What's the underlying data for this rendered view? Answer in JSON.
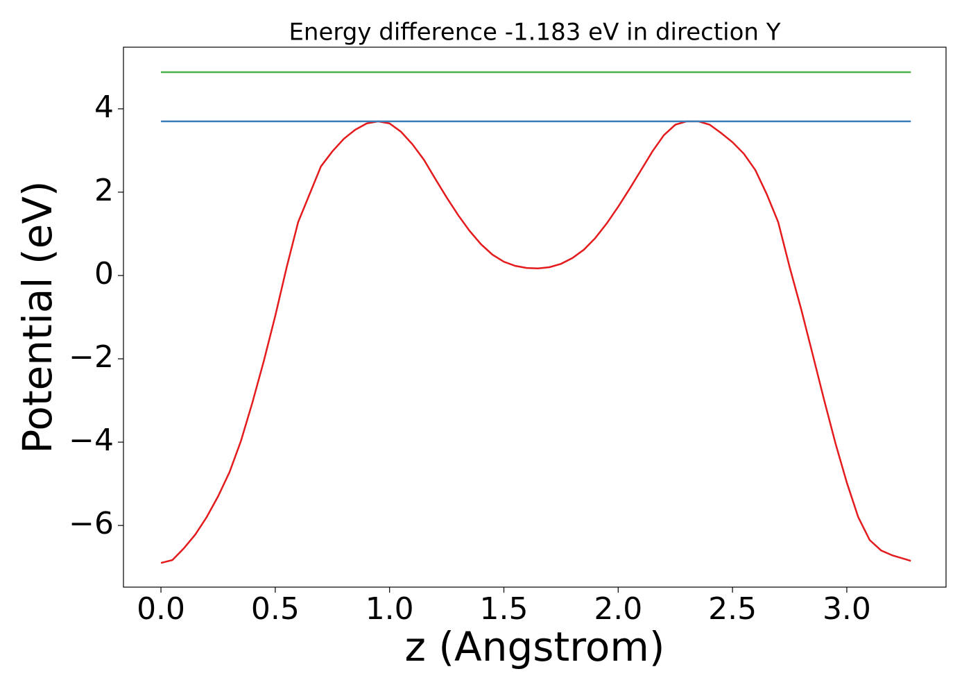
{
  "chart_data": {
    "type": "line",
    "title": "Energy difference -1.183 eV in direction Y",
    "x_label": "z (Angstrom)",
    "y_label": "Potential (eV)",
    "xlim": [
      -0.164,
      3.434
    ],
    "ylim": [
      -7.48,
      5.48
    ],
    "xticks": [
      {
        "value": 0,
        "label": "0.0"
      },
      0.5,
      {
        "value": 1,
        "label": "1.0"
      },
      1.5,
      {
        "value": 2,
        "label": "2.0"
      },
      2.5,
      {
        "value": 3,
        "label": "3.0"
      }
    ],
    "yticks": [
      {
        "value": -6,
        "label": "−6"
      },
      {
        "value": -4,
        "label": "−4"
      },
      {
        "value": -2,
        "label": "−2"
      },
      0,
      2,
      4
    ],
    "series": [
      {
        "color": "#e41a1c",
        "x": [
          0,
          0.05,
          0.1,
          0.15,
          0.2,
          0.25,
          0.3,
          0.35,
          0.4,
          0.45,
          0.5,
          0.55,
          0.6,
          0.65,
          0.7,
          0.75,
          0.8,
          0.85,
          0.9,
          0.95,
          1.0,
          1.05,
          1.1,
          1.15,
          1.2,
          1.25,
          1.3,
          1.35,
          1.4,
          1.45,
          1.5,
          1.55,
          1.6,
          1.65,
          1.7,
          1.75,
          1.8,
          1.85,
          1.9,
          1.95,
          2.0,
          2.05,
          2.1,
          2.15,
          2.2,
          2.25,
          2.3,
          2.35,
          2.4,
          2.45,
          2.5,
          2.55,
          2.6,
          2.65,
          2.7,
          2.75,
          2.8,
          2.85,
          2.9,
          2.95,
          3.0,
          3.05,
          3.1,
          3.15,
          3.2,
          3.25,
          3.28
        ],
        "values": [
          -6.9,
          -6.83,
          -6.55,
          -6.22,
          -5.8,
          -5.3,
          -4.72,
          -3.97,
          -3.05,
          -2.05,
          -0.97,
          0.2,
          1.28,
          1.95,
          2.62,
          2.98,
          3.28,
          3.5,
          3.65,
          3.7,
          3.65,
          3.45,
          3.15,
          2.78,
          2.32,
          1.87,
          1.45,
          1.07,
          0.75,
          0.5,
          0.33,
          0.23,
          0.18,
          0.17,
          0.2,
          0.28,
          0.42,
          0.62,
          0.9,
          1.25,
          1.65,
          2.08,
          2.53,
          2.98,
          3.37,
          3.62,
          3.7,
          3.7,
          3.62,
          3.42,
          3.2,
          2.92,
          2.53,
          1.95,
          1.28,
          0.2,
          -0.8,
          -1.88,
          -2.97,
          -4.02,
          -4.97,
          -5.8,
          -6.35,
          -6.6,
          -6.72,
          -6.8,
          -6.85
        ]
      },
      {
        "color": "#377eb8",
        "x": [
          0,
          3.28
        ],
        "values": [
          3.7,
          3.7
        ]
      },
      {
        "color": "#4daf4a",
        "x": [
          0,
          3.28
        ],
        "values": [
          4.88,
          4.88
        ]
      }
    ]
  }
}
